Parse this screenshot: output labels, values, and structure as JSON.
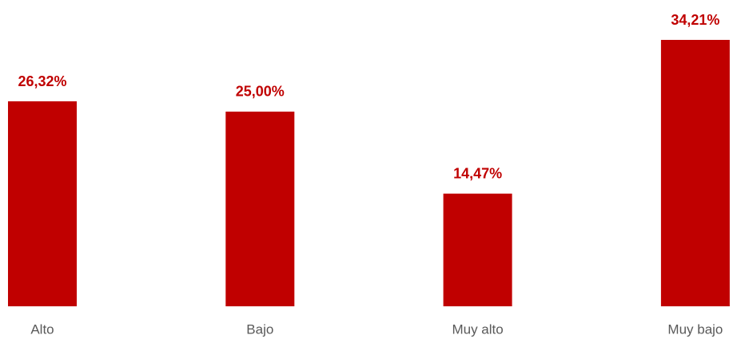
{
  "chart_data": {
    "type": "bar",
    "categories": [
      "Alto",
      "Bajo",
      "Muy alto",
      "Muy bajo"
    ],
    "values": [
      26.32,
      25.0,
      14.47,
      34.21
    ],
    "value_labels": [
      "26,32%",
      "25,00%",
      "14,47%",
      "34,21%"
    ],
    "color": "#c00000"
  }
}
